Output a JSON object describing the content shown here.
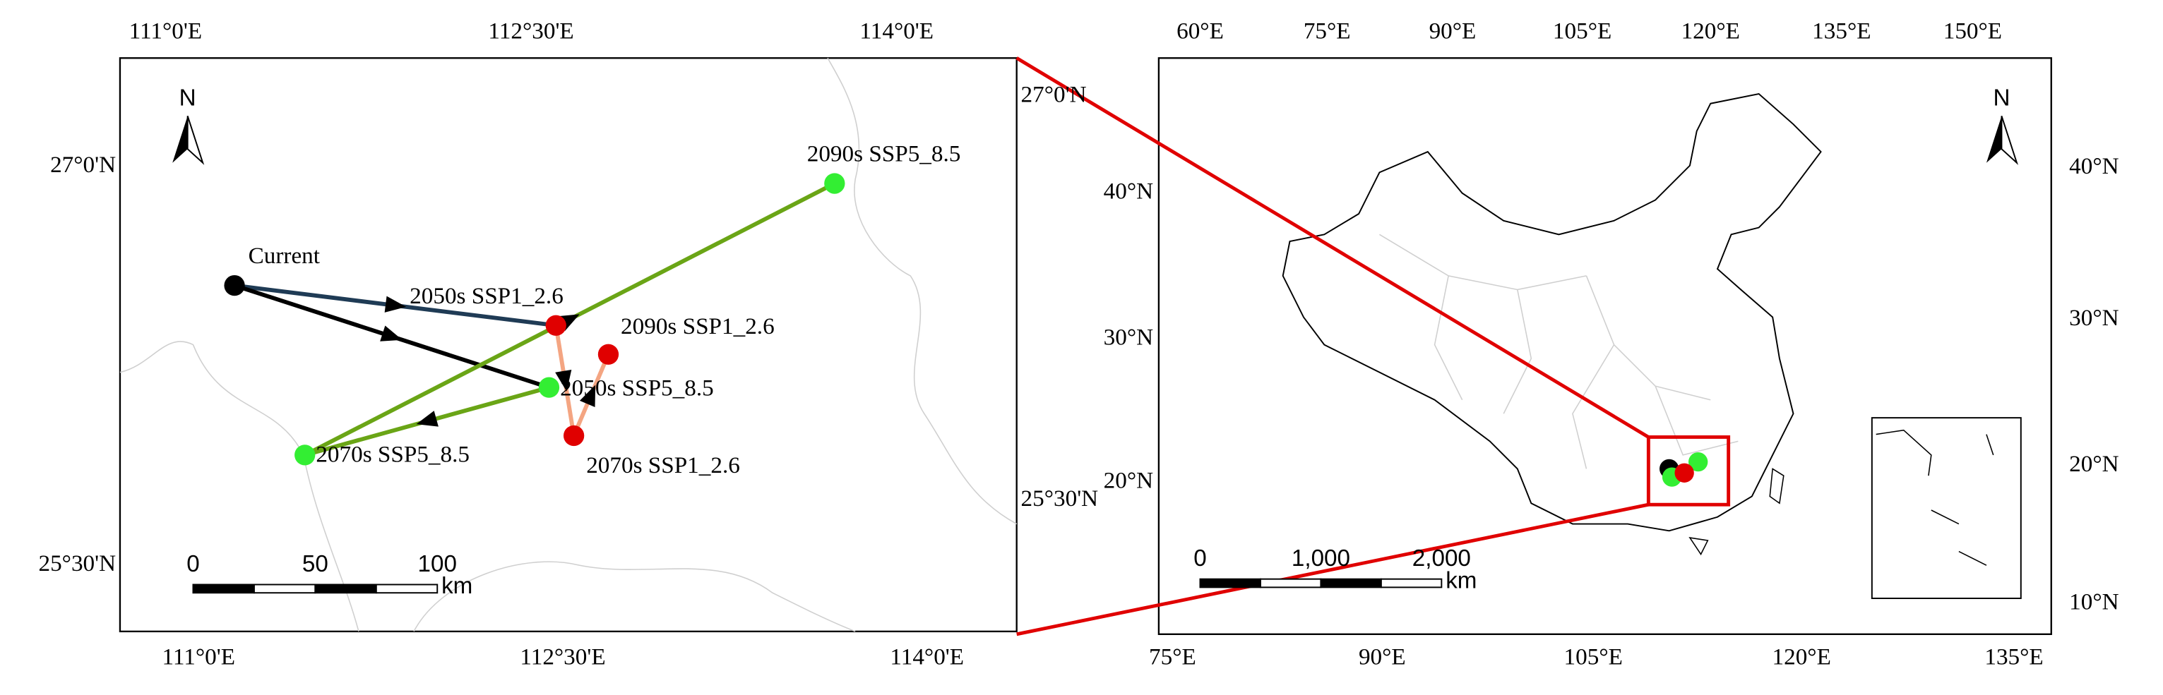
{
  "left_map": {
    "top_ticks": [
      "111°0'E",
      "112°30'E",
      "114°0'E"
    ],
    "bottom_ticks": [
      "111°0'E",
      "112°30'E",
      "114°0'E"
    ],
    "left_ticks": [
      "27°0'N",
      "25°30'N"
    ],
    "right_ticks": [
      "27°0'N",
      "25°30'N"
    ],
    "north": "N",
    "points": [
      {
        "label": "Current",
        "color": "#000000"
      },
      {
        "label": "2050s SSP1_2.6",
        "color": "#e00000"
      },
      {
        "label": "2070s SSP1_2.6",
        "color": "#e00000"
      },
      {
        "label": "2090s SSP1_2.6",
        "color": "#e00000"
      },
      {
        "label": "2050s SSP5_8.5",
        "color": "#33ee33"
      },
      {
        "label": "2070s SSP5_8.5",
        "color": "#33ee33"
      },
      {
        "label": "2090s SSP5_8.5",
        "color": "#33ee33"
      }
    ],
    "scale": {
      "ticks": [
        "0",
        "50",
        "100"
      ],
      "unit": "km"
    }
  },
  "right_map": {
    "top_ticks": [
      "60°E",
      "75°E",
      "90°E",
      "105°E",
      "120°E",
      "135°E",
      "150°E"
    ],
    "bottom_ticks": [
      "75°E",
      "90°E",
      "105°E",
      "120°E",
      "135°E"
    ],
    "left_ticks": [
      "40°N",
      "30°N",
      "20°N"
    ],
    "right_ticks": [
      "40°N",
      "30°N",
      "20°N",
      "10°N"
    ],
    "north": "N",
    "scale": {
      "ticks": [
        "0",
        "1,000",
        "2,000"
      ],
      "unit": "km"
    }
  }
}
